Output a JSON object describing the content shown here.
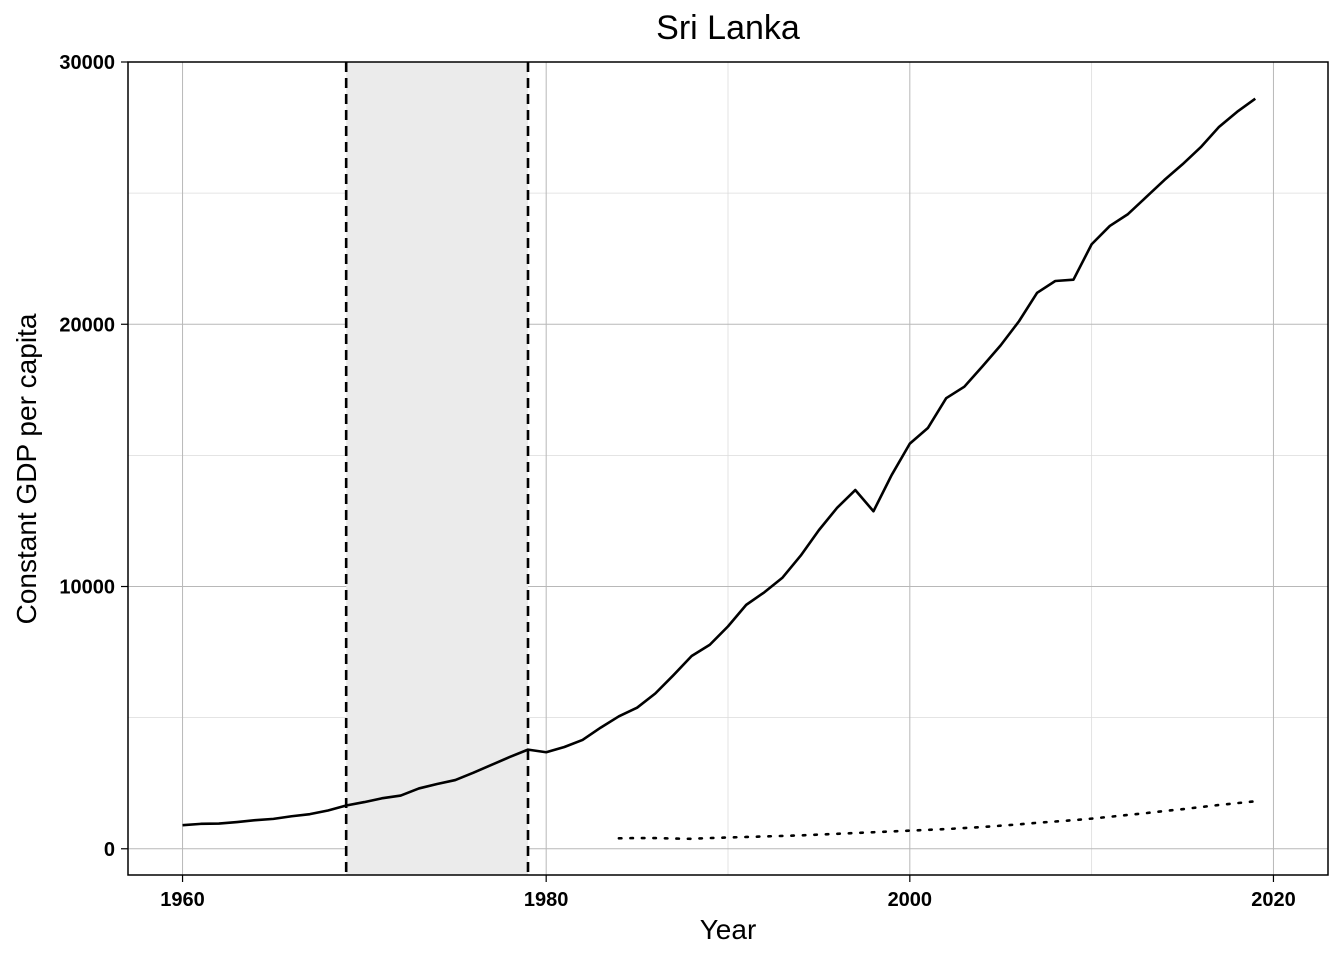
{
  "chart_data": {
    "type": "line",
    "title": "Sri Lanka",
    "xlabel": "Year",
    "ylabel": "Constant GDP per capita",
    "xlim": [
      1957,
      2023
    ],
    "ylim": [
      -1000,
      30000
    ],
    "x_ticks": [
      1960,
      1980,
      2000,
      2020
    ],
    "y_ticks": [
      0,
      10000,
      20000,
      30000
    ],
    "grid": true,
    "legend": "none",
    "shaded_region": {
      "x_start": 1969,
      "x_end": 1979,
      "color": "#ebebeb"
    },
    "vlines": [
      {
        "x": 1969,
        "style": "dashed",
        "color": "#000000"
      },
      {
        "x": 1979,
        "style": "dashed",
        "color": "#000000"
      }
    ],
    "series": [
      {
        "style": "solid",
        "color": "#000000",
        "x": [
          1960,
          1961,
          1962,
          1963,
          1964,
          1965,
          1966,
          1967,
          1968,
          1969,
          1970,
          1971,
          1972,
          1973,
          1974,
          1975,
          1976,
          1977,
          1978,
          1979,
          1980,
          1981,
          1982,
          1983,
          1984,
          1985,
          1986,
          1987,
          1988,
          1989,
          1990,
          1991,
          1992,
          1993,
          1994,
          1995,
          1996,
          1997,
          1998,
          1999,
          2000,
          2001,
          2002,
          2003,
          2004,
          2005,
          2006,
          2007,
          2008,
          2009,
          2010,
          2011,
          2012,
          2013,
          2014,
          2015,
          2016,
          2017,
          2018,
          2019
        ],
        "y": [
          900,
          950,
          960,
          1020,
          1090,
          1140,
          1240,
          1320,
          1460,
          1650,
          1780,
          1930,
          2030,
          2300,
          2470,
          2620,
          2900,
          3200,
          3500,
          3780,
          3680,
          3880,
          4150,
          4620,
          5050,
          5380,
          5920,
          6620,
          7350,
          7780,
          8480,
          9300,
          9780,
          10340,
          11180,
          12150,
          13000,
          13680,
          12870,
          14250,
          15450,
          16050,
          17180,
          17620,
          18400,
          19200,
          20110,
          21200,
          21650,
          21700,
          23050,
          23750,
          24200,
          24850,
          25500,
          26100,
          26750,
          27520,
          28100,
          28600
        ]
      },
      {
        "style": "dotted",
        "color": "#000000",
        "x": [
          1984,
          1985,
          1986,
          1987,
          1988,
          1989,
          1990,
          1991,
          1992,
          1993,
          1994,
          1995,
          1996,
          1997,
          1998,
          1999,
          2000,
          2001,
          2002,
          2003,
          2004,
          2005,
          2006,
          2007,
          2008,
          2009,
          2010,
          2011,
          2012,
          2013,
          2014,
          2015,
          2016,
          2017,
          2018,
          2019
        ],
        "y": [
          400,
          410,
          410,
          390,
          380,
          410,
          430,
          450,
          470,
          490,
          510,
          540,
          570,
          600,
          630,
          660,
          690,
          720,
          750,
          790,
          830,
          880,
          930,
          990,
          1040,
          1090,
          1150,
          1220,
          1290,
          1360,
          1440,
          1510,
          1590,
          1670,
          1740,
          1810
        ]
      }
    ]
  }
}
